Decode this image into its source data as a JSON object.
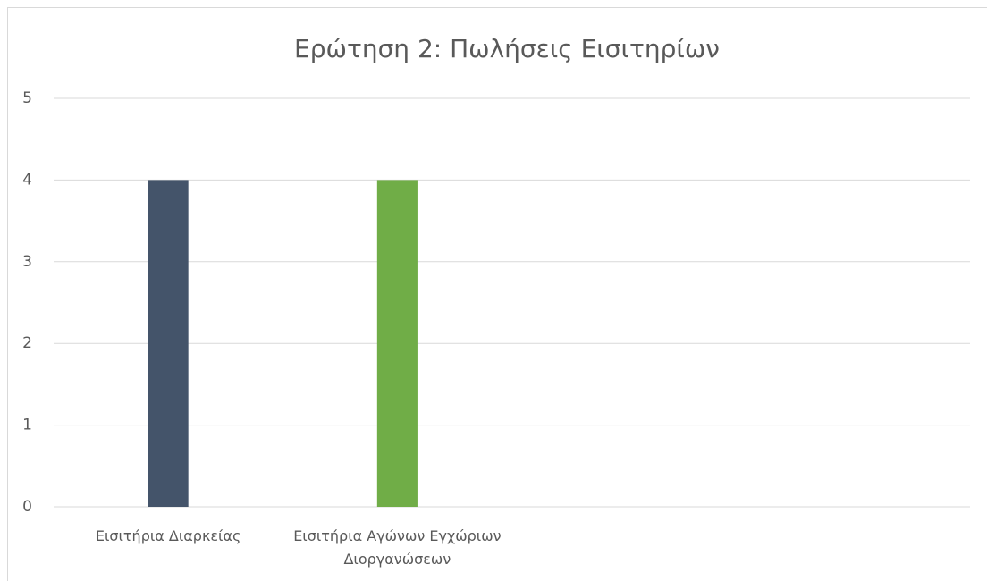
{
  "chart_data": {
    "type": "bar",
    "title": "Ερώτηση 2: Πωλήσεις Εισιτηρίων",
    "categories": [
      "Εισιτήρια Διαρκείας",
      "Εισιτήρια Αγώνων Εγχώριων Διοργανώσεων",
      null,
      null
    ],
    "values": [
      4,
      4,
      null,
      null
    ],
    "colors": [
      "#44546a",
      "#70ad47",
      null,
      null
    ],
    "ylim": [
      0,
      5
    ],
    "yticks": [
      0,
      1,
      2,
      3,
      4,
      5
    ],
    "grid": true
  }
}
